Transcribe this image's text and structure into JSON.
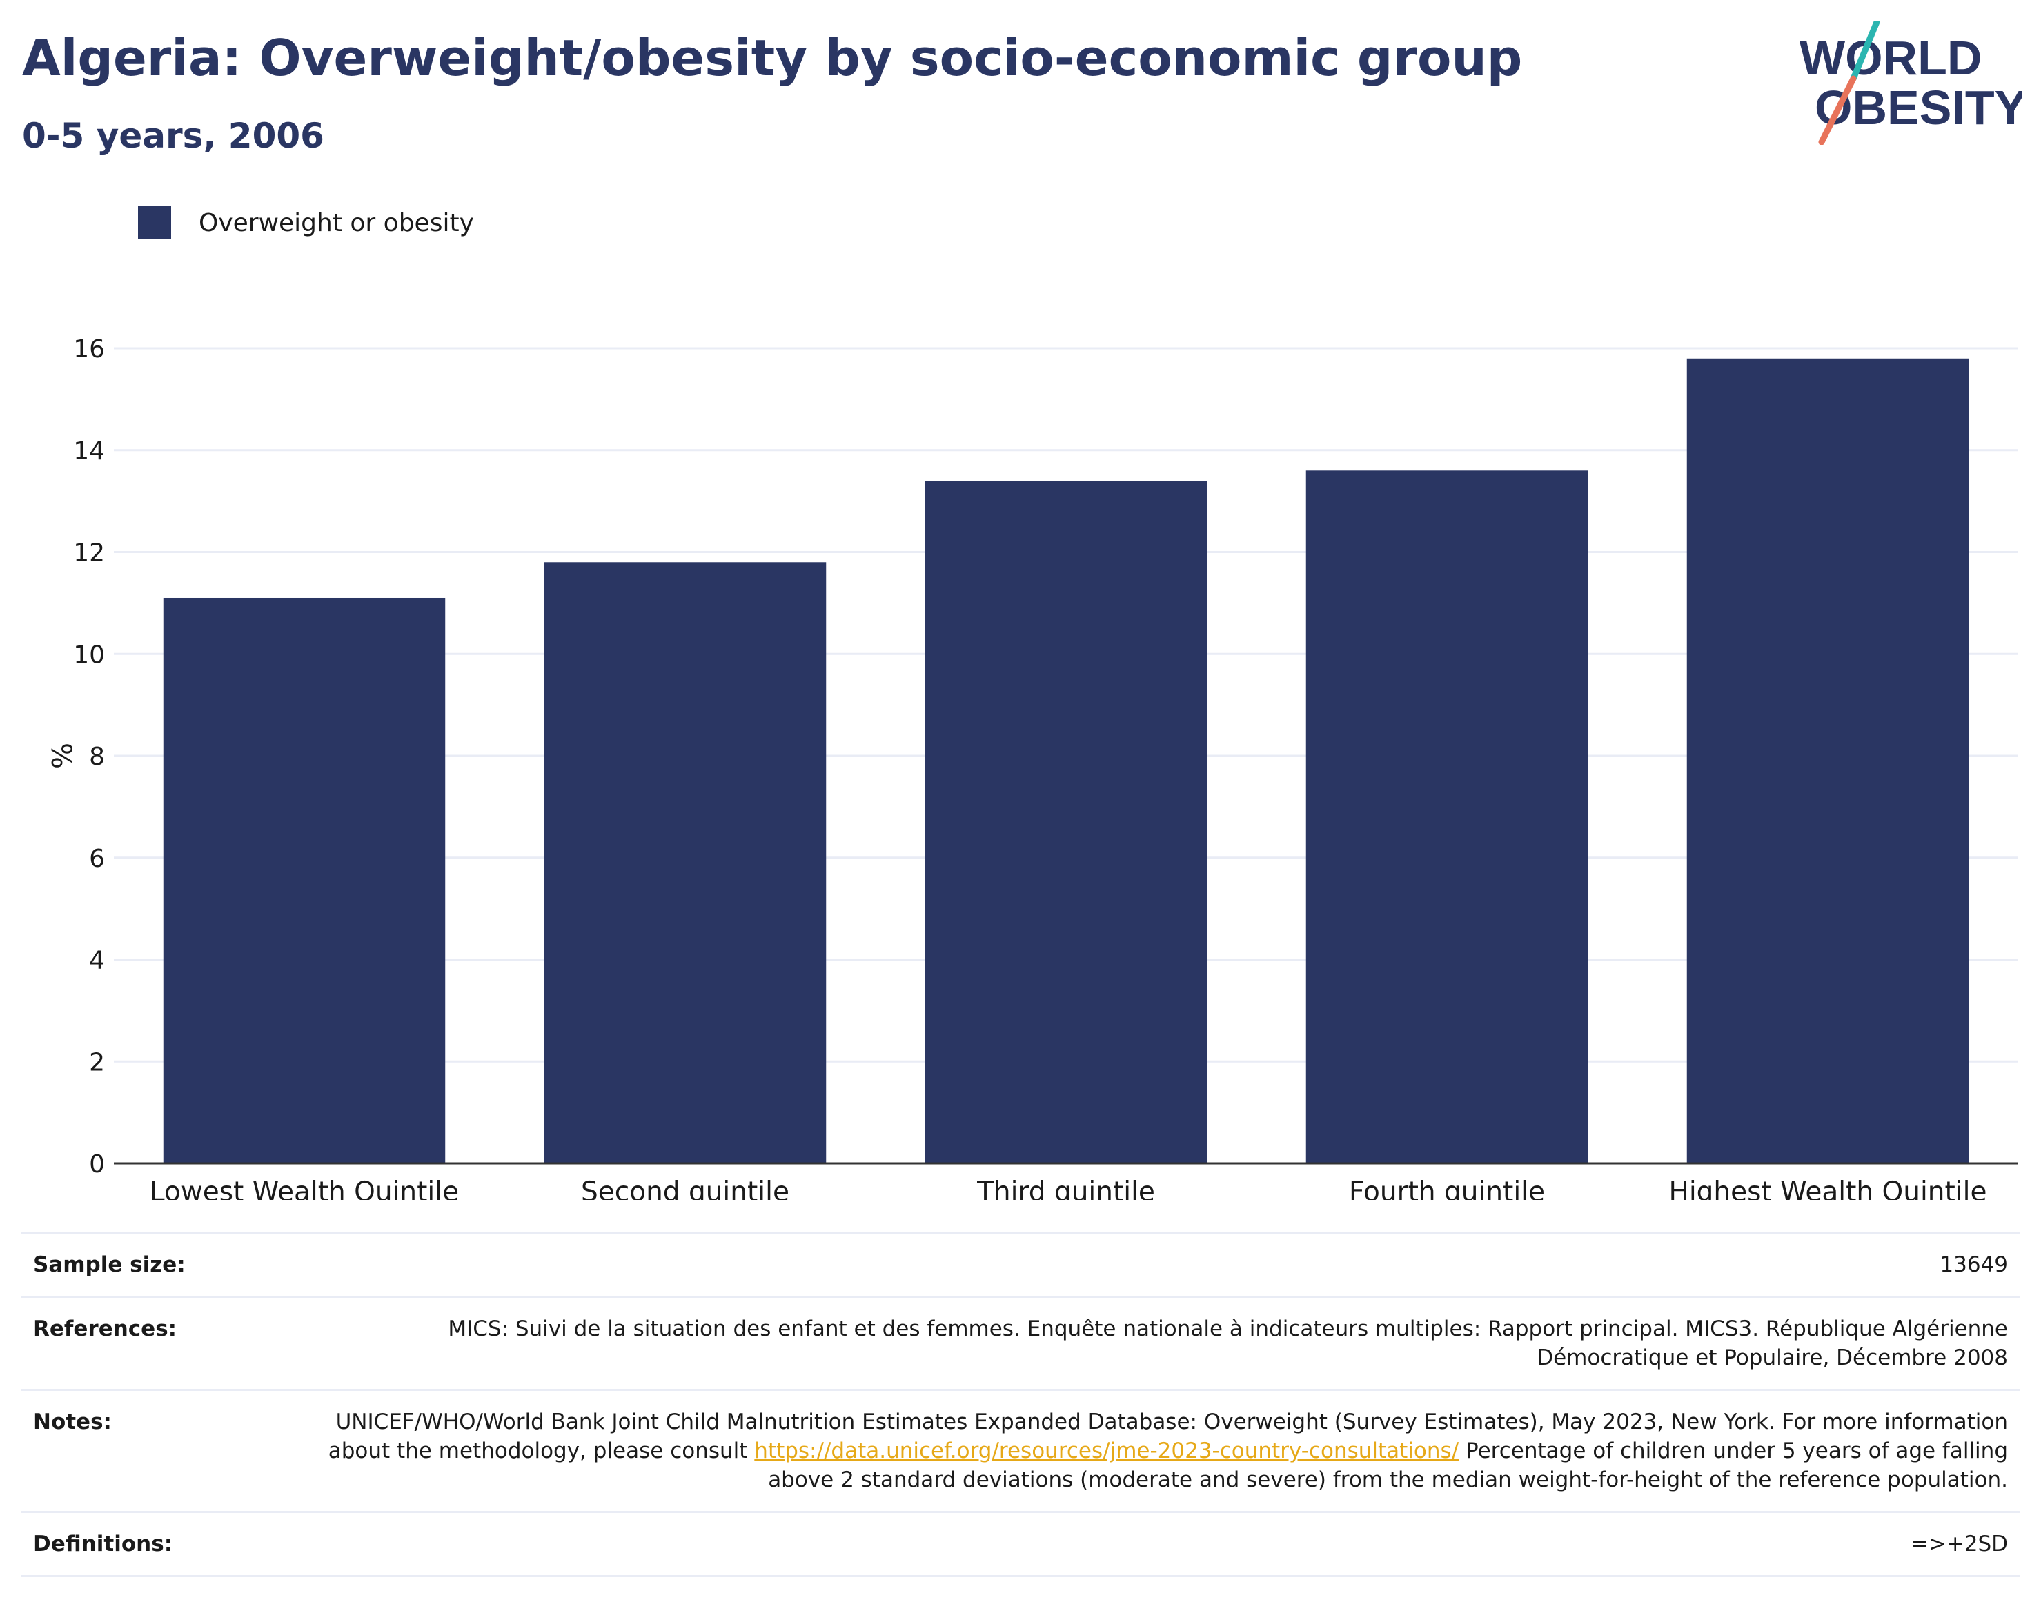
{
  "header": {
    "title": "Algeria: Overweight/obesity by socio-economic group",
    "subtitle": "0-5 years, 2006"
  },
  "logo": {
    "line1": "WORLD",
    "line2": "OBESITY",
    "text_color": "#2a3663",
    "slash_colors": [
      "#2bb5b0",
      "#e8735a"
    ]
  },
  "legend": {
    "label": "Overweight or obesity",
    "color": "#2a3663"
  },
  "chart_data": {
    "type": "bar",
    "categories": [
      "Lowest Wealth Quintile",
      "Second quintile",
      "Third quintile",
      "Fourth quintile",
      "Highest Wealth Quintile"
    ],
    "series": [
      {
        "name": "Overweight or obesity",
        "values": [
          11.1,
          11.8,
          13.4,
          13.6,
          15.8
        ]
      }
    ],
    "ylabel": "%",
    "xlabel": "",
    "ylim": [
      0,
      16
    ],
    "yticks": [
      0,
      2,
      4,
      6,
      8,
      10,
      12,
      14,
      16
    ],
    "grid": true,
    "bar_color": "#2a3663"
  },
  "info": {
    "sample_size_label": "Sample size:",
    "sample_size_value": "13649",
    "references_label": "References:",
    "references_value": "MICS: Suivi de la situation des enfant et des femmes. Enquête nationale à indicateurs multiples: Rapport principal. MICS3. République Algérienne Démocratique et Populaire, Décembre 2008",
    "notes_label": "Notes:",
    "notes_text_before": "UNICEF/WHO/World Bank Joint Child Malnutrition Estimates Expanded Database: Overweight (Survey Estimates), May 2023, New York. For more information about the methodology, please consult ",
    "notes_link": "https://data.unicef.org/resources/jme-2023-country-consultations/",
    "notes_text_after": " Percentage of children under 5 years of age falling above 2 standard deviations (moderate and severe) from the median weight-for-height of the reference population.",
    "definitions_label": "Definitions:",
    "definitions_value": "=>+2SD"
  }
}
